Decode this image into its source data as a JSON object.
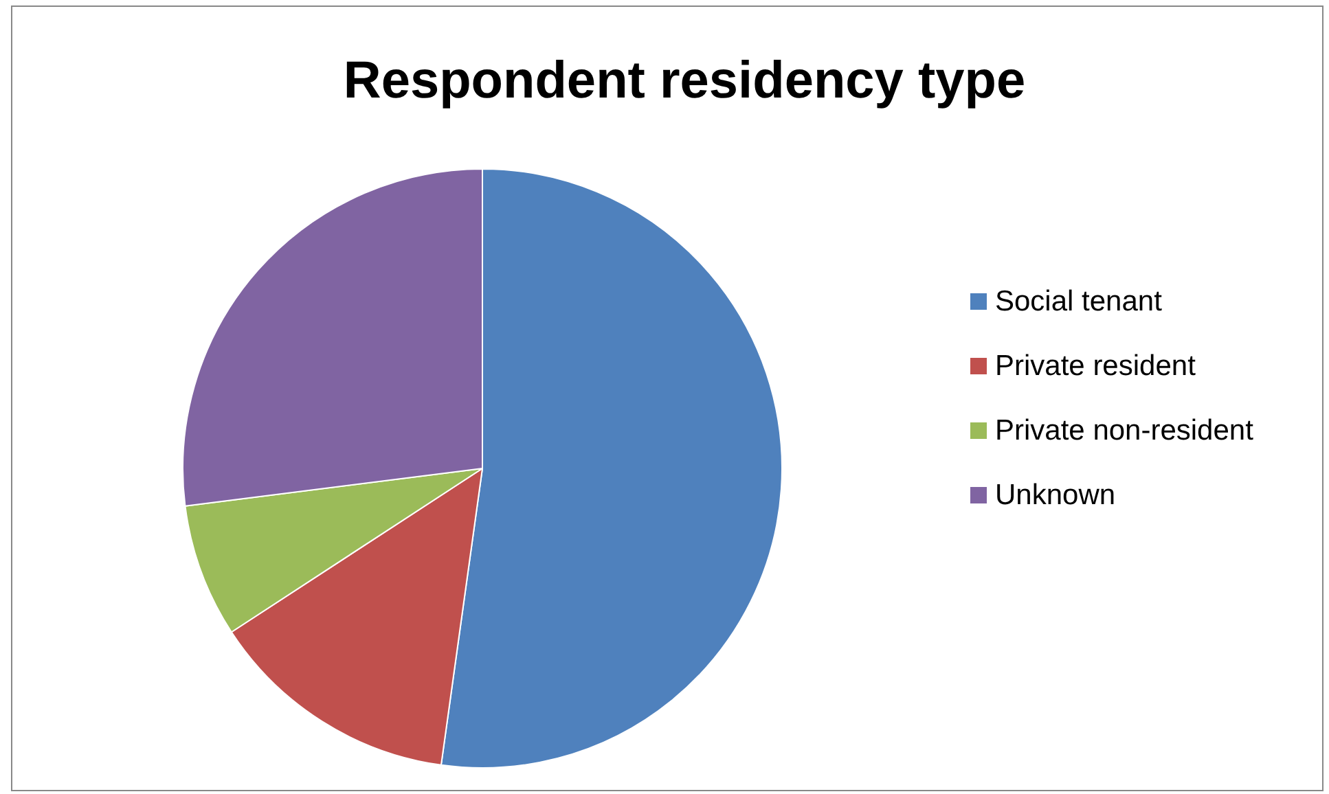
{
  "chart_data": {
    "type": "pie",
    "title": "Respondent residency type",
    "categories": [
      "Social tenant",
      "Private resident",
      "Private non-resident",
      "Unknown"
    ],
    "values": [
      52.2,
      13.6,
      7.2,
      27.0
    ],
    "colors": [
      "#4f81bd",
      "#c0504d",
      "#9bbb59",
      "#8064a2"
    ],
    "legend": "right"
  }
}
